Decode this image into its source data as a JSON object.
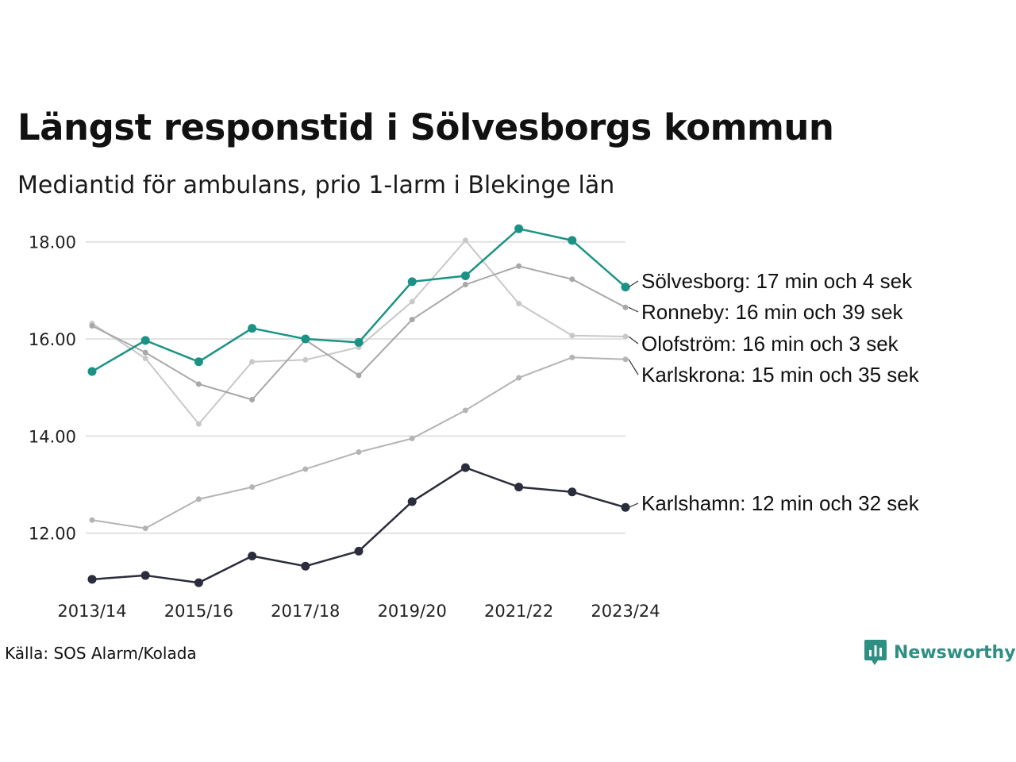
{
  "header": {
    "title": "Längst responstid i Sölvesborgs kommun",
    "subtitle": "Mediantid för ambulans, prio 1-larm i Blekinge län"
  },
  "footer": {
    "source": "Källa: SOS Alarm/Kolada",
    "brand": "Newsworthy"
  },
  "colors": {
    "highlight": "#1a9384",
    "dark": "#2b2d3c",
    "grey_light": "#c8c8c8",
    "grey_mid": "#adadad",
    "gridline": "#e2e2e2"
  },
  "chart_data": {
    "type": "line",
    "title": "Längst responstid i Sölvesborgs kommun",
    "subtitle": "Mediantid för ambulans, prio 1-larm i Blekinge län",
    "x": [
      "2013/14",
      "2014/15",
      "2015/16",
      "2016/17",
      "2017/18",
      "2018/19",
      "2019/20",
      "2020/21",
      "2021/22",
      "2022/23",
      "2023/24"
    ],
    "x_tick_labels": [
      "2013/14",
      "2015/16",
      "2017/18",
      "2019/20",
      "2021/22",
      "2023/24"
    ],
    "y_ticks": [
      "12.00",
      "14.00",
      "16.00",
      "18.00"
    ],
    "ylim": [
      10.9,
      18.6
    ],
    "grid": "horizontal",
    "legend": "end-labels-right",
    "series": [
      {
        "name": "Olofström",
        "label": "Olofström: 16 min och 3 sek",
        "color": "#c8c8c8",
        "values": [
          16.32,
          15.6,
          14.25,
          15.53,
          15.57,
          15.83,
          16.77,
          18.03,
          16.73,
          16.07,
          16.05
        ]
      },
      {
        "name": "Karlskrona",
        "label": "Karlskrona: 15 min och 35 sek",
        "color": "#b4b4b4",
        "values": [
          12.27,
          12.1,
          12.7,
          12.95,
          13.32,
          13.67,
          13.95,
          14.53,
          15.2,
          15.62,
          15.58
        ]
      },
      {
        "name": "Ronneby",
        "label": "Ronneby: 16 min och 39 sek",
        "color": "#a8a8a8",
        "values": [
          16.27,
          15.72,
          15.07,
          14.75,
          15.98,
          15.25,
          16.4,
          17.12,
          17.5,
          17.23,
          16.65
        ]
      },
      {
        "name": "Karlshamn",
        "label": "Karlshamn: 12 min och 32 sek",
        "color": "#2b2d3c",
        "values": [
          11.05,
          11.13,
          10.98,
          11.53,
          11.32,
          11.63,
          12.65,
          13.35,
          12.95,
          12.85,
          12.53
        ]
      },
      {
        "name": "Sölvesborg",
        "label": "Sölvesborg: 17 min och 4 sek",
        "color": "#1a9384",
        "values": [
          15.33,
          15.97,
          15.53,
          16.22,
          16.0,
          15.93,
          17.18,
          17.3,
          18.27,
          18.03,
          17.07
        ]
      }
    ]
  }
}
